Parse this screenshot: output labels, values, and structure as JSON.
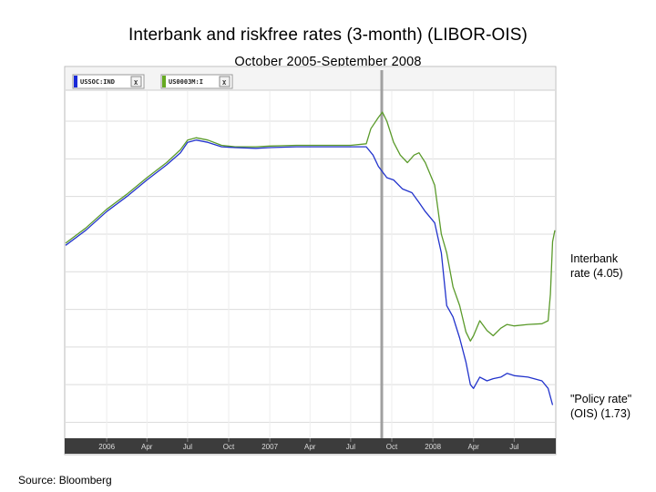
{
  "header": {
    "title": "Interbank and riskfree rates (3-month) (LIBOR-OIS)",
    "subtitle": "October 2005-September 2008"
  },
  "annotations": {
    "interbank": [
      "Interbank",
      "rate (4.05)"
    ],
    "policy": [
      "\"Policy rate\"",
      "(OIS) (1.73)"
    ]
  },
  "source": "Source: Bloomberg",
  "legend_tags": [
    {
      "label": "USSOC:IND",
      "close": "X",
      "color": "#1a2ad8"
    },
    {
      "label": "US0003M:I",
      "close": "X",
      "color": "#66aa22"
    }
  ],
  "chart_data": {
    "type": "line",
    "title": "Interbank and riskfree rates (3-month) (LIBOR-OIS)",
    "subtitle": "October 2005-September 2008",
    "x_tick_labels": [
      "2006",
      "Apr",
      "Jul",
      "Oct",
      "2007",
      "Apr",
      "Jul",
      "Oct",
      "2008",
      "Apr",
      "Jul"
    ],
    "x_tick_dates": [
      "2006-01-01",
      "2006-04-01",
      "2006-07-01",
      "2006-10-01",
      "2007-01-01",
      "2007-04-01",
      "2007-07-01",
      "2007-10-01",
      "2008-01-01",
      "2008-04-01",
      "2008-07-01"
    ],
    "xlim": [
      "2005-10-01",
      "2008-09-30"
    ],
    "ylim": [
      1.3,
      5.9
    ],
    "y_gridlines": [
      1.5,
      2.0,
      2.5,
      3.0,
      3.5,
      4.0,
      4.5,
      5.0,
      5.5
    ],
    "grid": true,
    "colors": {
      "interbank": "#5a9a2a",
      "policy": "#2233cc"
    },
    "series": [
      {
        "name": "USSOC:IND",
        "color": "#2233cc",
        "points": [
          [
            "2005-10-01",
            3.85
          ],
          [
            "2005-11-15",
            4.05
          ],
          [
            "2006-01-01",
            4.3
          ],
          [
            "2006-02-15",
            4.5
          ],
          [
            "2006-04-01",
            4.72
          ],
          [
            "2006-05-15",
            4.92
          ],
          [
            "2006-06-15",
            5.08
          ],
          [
            "2006-07-01",
            5.22
          ],
          [
            "2006-07-20",
            5.25
          ],
          [
            "2006-08-15",
            5.22
          ],
          [
            "2006-09-15",
            5.16
          ],
          [
            "2006-10-15",
            5.15
          ],
          [
            "2006-12-01",
            5.14
          ],
          [
            "2007-01-01",
            5.15
          ],
          [
            "2007-03-01",
            5.16
          ],
          [
            "2007-05-01",
            5.16
          ],
          [
            "2007-07-01",
            5.16
          ],
          [
            "2007-08-05",
            5.16
          ],
          [
            "2007-08-20",
            5.05
          ],
          [
            "2007-09-01",
            4.9
          ],
          [
            "2007-09-20",
            4.75
          ],
          [
            "2007-10-05",
            4.72
          ],
          [
            "2007-10-25",
            4.6
          ],
          [
            "2007-11-15",
            4.55
          ],
          [
            "2007-12-01",
            4.42
          ],
          [
            "2007-12-15",
            4.3
          ],
          [
            "2008-01-05",
            4.15
          ],
          [
            "2008-01-20",
            3.75
          ],
          [
            "2008-02-01",
            3.05
          ],
          [
            "2008-02-15",
            2.9
          ],
          [
            "2008-03-01",
            2.62
          ],
          [
            "2008-03-15",
            2.3
          ],
          [
            "2008-03-25",
            2.0
          ],
          [
            "2008-04-01",
            1.95
          ],
          [
            "2008-04-15",
            2.1
          ],
          [
            "2008-05-01",
            2.05
          ],
          [
            "2008-05-15",
            2.08
          ],
          [
            "2008-06-01",
            2.1
          ],
          [
            "2008-06-15",
            2.15
          ],
          [
            "2008-07-01",
            2.12
          ],
          [
            "2008-08-01",
            2.1
          ],
          [
            "2008-09-01",
            2.05
          ],
          [
            "2008-09-15",
            1.95
          ],
          [
            "2008-09-25",
            1.73
          ]
        ]
      },
      {
        "name": "US0003M:I",
        "color": "#5a9a2a",
        "points": [
          [
            "2005-10-01",
            3.88
          ],
          [
            "2005-11-15",
            4.08
          ],
          [
            "2006-01-01",
            4.33
          ],
          [
            "2006-02-15",
            4.53
          ],
          [
            "2006-04-01",
            4.75
          ],
          [
            "2006-05-15",
            4.95
          ],
          [
            "2006-06-15",
            5.12
          ],
          [
            "2006-07-01",
            5.25
          ],
          [
            "2006-07-20",
            5.28
          ],
          [
            "2006-08-15",
            5.25
          ],
          [
            "2006-09-15",
            5.18
          ],
          [
            "2006-10-15",
            5.16
          ],
          [
            "2006-12-01",
            5.16
          ],
          [
            "2007-01-01",
            5.17
          ],
          [
            "2007-03-01",
            5.18
          ],
          [
            "2007-05-01",
            5.18
          ],
          [
            "2007-07-01",
            5.18
          ],
          [
            "2007-08-05",
            5.2
          ],
          [
            "2007-08-15",
            5.4
          ],
          [
            "2007-09-01",
            5.55
          ],
          [
            "2007-09-10",
            5.62
          ],
          [
            "2007-09-20",
            5.5
          ],
          [
            "2007-10-05",
            5.22
          ],
          [
            "2007-10-20",
            5.05
          ],
          [
            "2007-11-05",
            4.95
          ],
          [
            "2007-11-20",
            5.05
          ],
          [
            "2007-12-01",
            5.08
          ],
          [
            "2007-12-15",
            4.95
          ],
          [
            "2008-01-05",
            4.65
          ],
          [
            "2008-01-20",
            4.0
          ],
          [
            "2008-02-01",
            3.75
          ],
          [
            "2008-02-15",
            3.3
          ],
          [
            "2008-03-01",
            3.05
          ],
          [
            "2008-03-15",
            2.7
          ],
          [
            "2008-03-25",
            2.58
          ],
          [
            "2008-04-01",
            2.65
          ],
          [
            "2008-04-15",
            2.85
          ],
          [
            "2008-05-01",
            2.72
          ],
          [
            "2008-05-15",
            2.65
          ],
          [
            "2008-06-01",
            2.75
          ],
          [
            "2008-06-15",
            2.8
          ],
          [
            "2008-07-01",
            2.78
          ],
          [
            "2008-08-01",
            2.8
          ],
          [
            "2008-09-01",
            2.81
          ],
          [
            "2008-09-15",
            2.85
          ],
          [
            "2008-09-20",
            3.2
          ],
          [
            "2008-09-25",
            3.9
          ],
          [
            "2008-09-30",
            4.05
          ]
        ]
      }
    ]
  }
}
